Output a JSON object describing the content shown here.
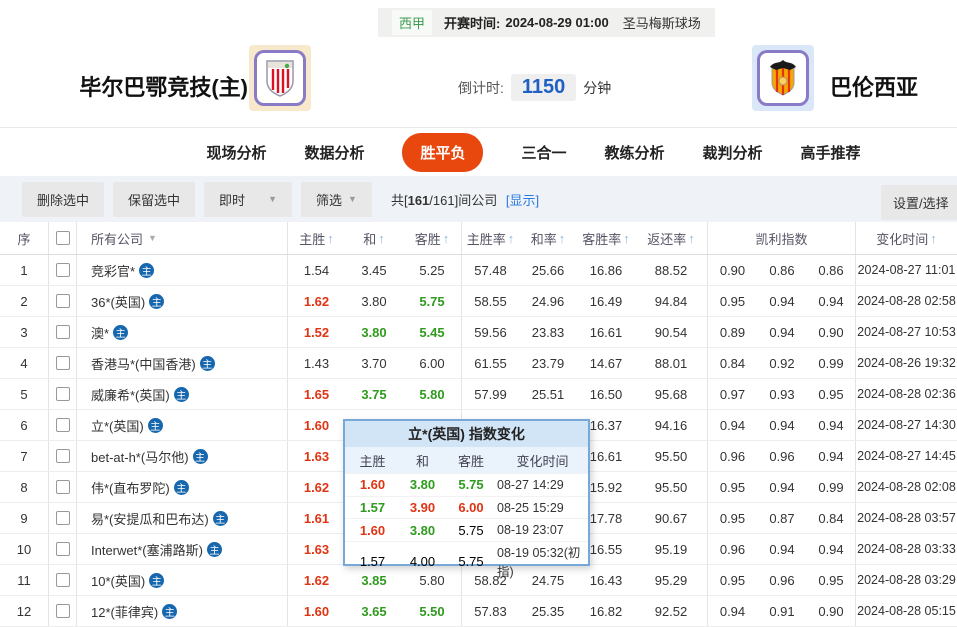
{
  "header": {
    "league": "西甲",
    "kickoff_label": "开赛时间:",
    "kickoff_time": "2024-08-29 01:00",
    "venue": "圣马梅斯球场",
    "home_team": "毕尔巴鄂竞技(主)",
    "away_team": "巴伦西亚",
    "countdown_label": "倒计时:",
    "countdown_value": "1150",
    "countdown_unit": "分钟"
  },
  "tabs": [
    {
      "label": "现场分析",
      "active": false
    },
    {
      "label": "数据分析",
      "active": false
    },
    {
      "label": "胜平负",
      "active": true
    },
    {
      "label": "三合一",
      "active": false
    },
    {
      "label": "教练分析",
      "active": false
    },
    {
      "label": "裁判分析",
      "active": false
    },
    {
      "label": "高手推荐",
      "active": false
    }
  ],
  "toolbar": {
    "delete_selected": "删除选中",
    "keep_selected": "保留选中",
    "instant": "即时",
    "filter": "筛选",
    "count_prefix": "共[",
    "count_bold": "161",
    "count_suffix": "/161]间公司",
    "show_link": "[显示]",
    "settings": "设置/选择"
  },
  "icons": {
    "sort_asc": "↑",
    "dropdown_caret": "▼",
    "filter_caret": "▼",
    "home_badge": "主"
  },
  "table": {
    "headers": {
      "seq": "序",
      "company": "所有公司",
      "home": "主胜",
      "draw": "和",
      "away": "客胜",
      "home_rate": "主胜率",
      "draw_rate": "和率",
      "away_rate": "客胜率",
      "return_rate": "返还率",
      "kelly": "凯利指数",
      "time": "变化时间"
    },
    "rows": [
      {
        "seq": "1",
        "company": "竞彩官*",
        "home": "1.54",
        "hc": "k",
        "draw": "3.45",
        "dc": "k",
        "away": "5.25",
        "ac": "k",
        "hr": "57.48",
        "dr": "25.66",
        "ar": "16.86",
        "rr": "88.52",
        "k1": "0.90",
        "k2": "0.86",
        "k3": "0.86",
        "time": "2024-08-27 11:01"
      },
      {
        "seq": "2",
        "company": "36*(英国)",
        "home": "1.62",
        "hc": "r",
        "draw": "3.80",
        "dc": "k",
        "away": "5.75",
        "ac": "g",
        "hr": "58.55",
        "dr": "24.96",
        "ar": "16.49",
        "rr": "94.84",
        "k1": "0.95",
        "k2": "0.94",
        "k3": "0.94",
        "time": "2024-08-28 02:58"
      },
      {
        "seq": "3",
        "company": "澳*",
        "home": "1.52",
        "hc": "r",
        "draw": "3.80",
        "dc": "g",
        "away": "5.45",
        "ac": "g",
        "hr": "59.56",
        "dr": "23.83",
        "ar": "16.61",
        "rr": "90.54",
        "k1": "0.89",
        "k2": "0.94",
        "k3": "0.90",
        "time": "2024-08-27 10:53"
      },
      {
        "seq": "4",
        "company": "香港马*(中国香港)",
        "home": "1.43",
        "hc": "k",
        "draw": "3.70",
        "dc": "k",
        "away": "6.00",
        "ac": "k",
        "hr": "61.55",
        "dr": "23.79",
        "ar": "14.67",
        "rr": "88.01",
        "k1": "0.84",
        "k2": "0.92",
        "k3": "0.99",
        "time": "2024-08-26 19:32"
      },
      {
        "seq": "5",
        "company": "威廉希*(英国)",
        "home": "1.65",
        "hc": "r",
        "draw": "3.75",
        "dc": "g",
        "away": "5.80",
        "ac": "g",
        "hr": "57.99",
        "dr": "25.51",
        "ar": "16.50",
        "rr": "95.68",
        "k1": "0.97",
        "k2": "0.93",
        "k3": "0.95",
        "time": "2024-08-28 02:36"
      },
      {
        "seq": "6",
        "company": "立*(英国)",
        "home": "1.60",
        "hc": "r",
        "draw": "",
        "dc": "k",
        "away": "",
        "ac": "k",
        "hr": "",
        "dr": "",
        "ar": "16.37",
        "rr": "94.16",
        "k1": "0.94",
        "k2": "0.94",
        "k3": "0.94",
        "time": "2024-08-27 14:30"
      },
      {
        "seq": "7",
        "company": "bet-at-h*(马尔他)",
        "home": "1.63",
        "hc": "r",
        "draw": "",
        "dc": "k",
        "away": "",
        "ac": "k",
        "hr": "",
        "dr": "",
        "ar": "16.61",
        "rr": "95.50",
        "k1": "0.96",
        "k2": "0.96",
        "k3": "0.94",
        "time": "2024-08-27 14:45"
      },
      {
        "seq": "8",
        "company": "伟*(直布罗陀)",
        "home": "1.62",
        "hc": "r",
        "draw": "",
        "dc": "k",
        "away": "",
        "ac": "k",
        "hr": "",
        "dr": "",
        "ar": "15.92",
        "rr": "95.50",
        "k1": "0.95",
        "k2": "0.94",
        "k3": "0.99",
        "time": "2024-08-28 02:08"
      },
      {
        "seq": "9",
        "company": "易*(安提瓜和巴布达)",
        "home": "1.61",
        "hc": "r",
        "draw": "",
        "dc": "k",
        "away": "",
        "ac": "k",
        "hr": "",
        "dr": "",
        "ar": "17.78",
        "rr": "90.67",
        "k1": "0.95",
        "k2": "0.87",
        "k3": "0.84",
        "time": "2024-08-28 03:57"
      },
      {
        "seq": "10",
        "company": "Interwet*(塞浦路斯)",
        "home": "1.63",
        "hc": "r",
        "draw": "",
        "dc": "k",
        "away": "",
        "ac": "k",
        "hr": "",
        "dr": "",
        "ar": "16.55",
        "rr": "95.19",
        "k1": "0.96",
        "k2": "0.94",
        "k3": "0.94",
        "time": "2024-08-28 03:33"
      },
      {
        "seq": "11",
        "company": "10*(英国)",
        "home": "1.62",
        "hc": "r",
        "draw": "3.85",
        "dc": "g",
        "away": "5.80",
        "ac": "k",
        "hr": "58.82",
        "dr": "24.75",
        "ar": "16.43",
        "rr": "95.29",
        "k1": "0.95",
        "k2": "0.96",
        "k3": "0.95",
        "time": "2024-08-28 03:29"
      },
      {
        "seq": "12",
        "company": "12*(菲律宾)",
        "home": "1.60",
        "hc": "r",
        "draw": "3.65",
        "dc": "g",
        "away": "5.50",
        "ac": "g",
        "hr": "57.83",
        "dr": "25.35",
        "ar": "16.82",
        "rr": "92.52",
        "k1": "0.94",
        "k2": "0.91",
        "k3": "0.90",
        "time": "2024-08-28 05:15"
      }
    ]
  },
  "popup": {
    "title": "立*(英国) 指数变化",
    "headers": {
      "home": "主胜",
      "draw": "和",
      "away": "客胜",
      "time": "变化时间"
    },
    "rows": [
      {
        "home": "1.60",
        "hc": "r",
        "draw": "3.80",
        "dc": "g",
        "away": "5.75",
        "ac": "g",
        "time": "08-27 14:29"
      },
      {
        "home": "1.57",
        "hc": "g",
        "draw": "3.90",
        "dc": "r",
        "away": "6.00",
        "ac": "r",
        "time": "08-25 15:29"
      },
      {
        "home": "1.60",
        "hc": "r",
        "draw": "3.80",
        "dc": "g",
        "away": "5.75",
        "ac": "k",
        "time": "08-19 23:07"
      },
      {
        "home": "1.57",
        "hc": "k",
        "draw": "4.00",
        "dc": "k",
        "away": "5.75",
        "ac": "k",
        "time": "08-19 05:32(初指)"
      }
    ]
  },
  "colors": {
    "odds_up_red": "#e03413",
    "odds_down_green": "#2f9b1e",
    "active_tab_orange": "#e8470e",
    "link_blue": "#2a7ae0",
    "countdown_blue": "#1f5fc4",
    "badge_blue": "#1767ae",
    "league_green": "#3f9c52",
    "popup_border_blue": "#78a8d8"
  }
}
